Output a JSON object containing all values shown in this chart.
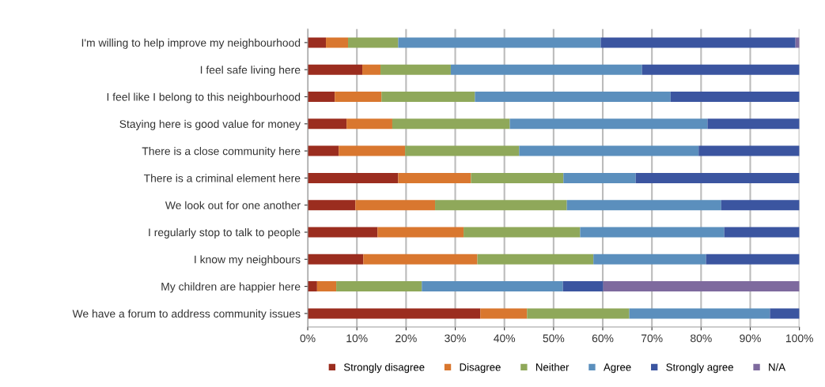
{
  "chart_data": {
    "type": "bar",
    "orientation": "horizontal",
    "stacked": true,
    "legend": "bottom",
    "grid": "x",
    "categories": [
      "I'm willing to help improve my neighbourhood",
      "I feel safe living here",
      "I feel like I belong to this neighbourhood",
      "Staying here is good value for money",
      "There is a close community here",
      "There is a criminal element here",
      "We look out for one another",
      "I regularly stop to talk to people",
      "I know my neighbours",
      "My children are happier here",
      "We have a forum to address community issues"
    ],
    "xlim": [
      0,
      100
    ],
    "xticks": [
      {
        "value": 0,
        "label": "0%"
      },
      {
        "value": 10,
        "label": "10%"
      },
      {
        "value": 20,
        "label": "20%"
      },
      {
        "value": 30,
        "label": "30%"
      },
      {
        "value": 40,
        "label": "40%"
      },
      {
        "value": 50,
        "label": "50%"
      },
      {
        "value": 60,
        "label": "60%"
      },
      {
        "value": 70,
        "label": "70%"
      },
      {
        "value": 80,
        "label": "80%"
      },
      {
        "value": 90,
        "label": "90%"
      },
      {
        "value": 100,
        "label": "100%"
      }
    ],
    "series": [
      {
        "name": "Strongly disagree",
        "color": "#9b2d1f",
        "values": [
          3.7,
          11.1,
          5.5,
          7.9,
          6.3,
          18.4,
          9.7,
          14.2,
          11.3,
          1.9,
          35.1
        ]
      },
      {
        "name": "Disagree",
        "color": "#d9772f",
        "values": [
          4.5,
          3.7,
          9.5,
          9.3,
          13.5,
          14.8,
          16.2,
          17.5,
          23.2,
          3.9,
          9.5
        ]
      },
      {
        "name": "Neither",
        "color": "#8fa85a",
        "values": [
          10.2,
          14.3,
          19.0,
          23.9,
          23.2,
          18.8,
          26.8,
          23.7,
          23.6,
          17.4,
          20.8
        ]
      },
      {
        "name": "Agree",
        "color": "#5b8fbd",
        "values": [
          41.2,
          38.9,
          39.8,
          40.2,
          36.5,
          14.7,
          31.4,
          29.3,
          22.9,
          28.7,
          28.6
        ]
      },
      {
        "name": "Strongly agree",
        "color": "#3b55a0",
        "values": [
          39.6,
          32.0,
          26.2,
          18.7,
          20.5,
          33.3,
          15.9,
          15.3,
          19.0,
          8.2,
          6.0
        ]
      },
      {
        "name": "N/A",
        "color": "#7e6a9e",
        "values": [
          0.8,
          0,
          0,
          0,
          0,
          0,
          0,
          0,
          0,
          39.9,
          0
        ]
      }
    ]
  }
}
